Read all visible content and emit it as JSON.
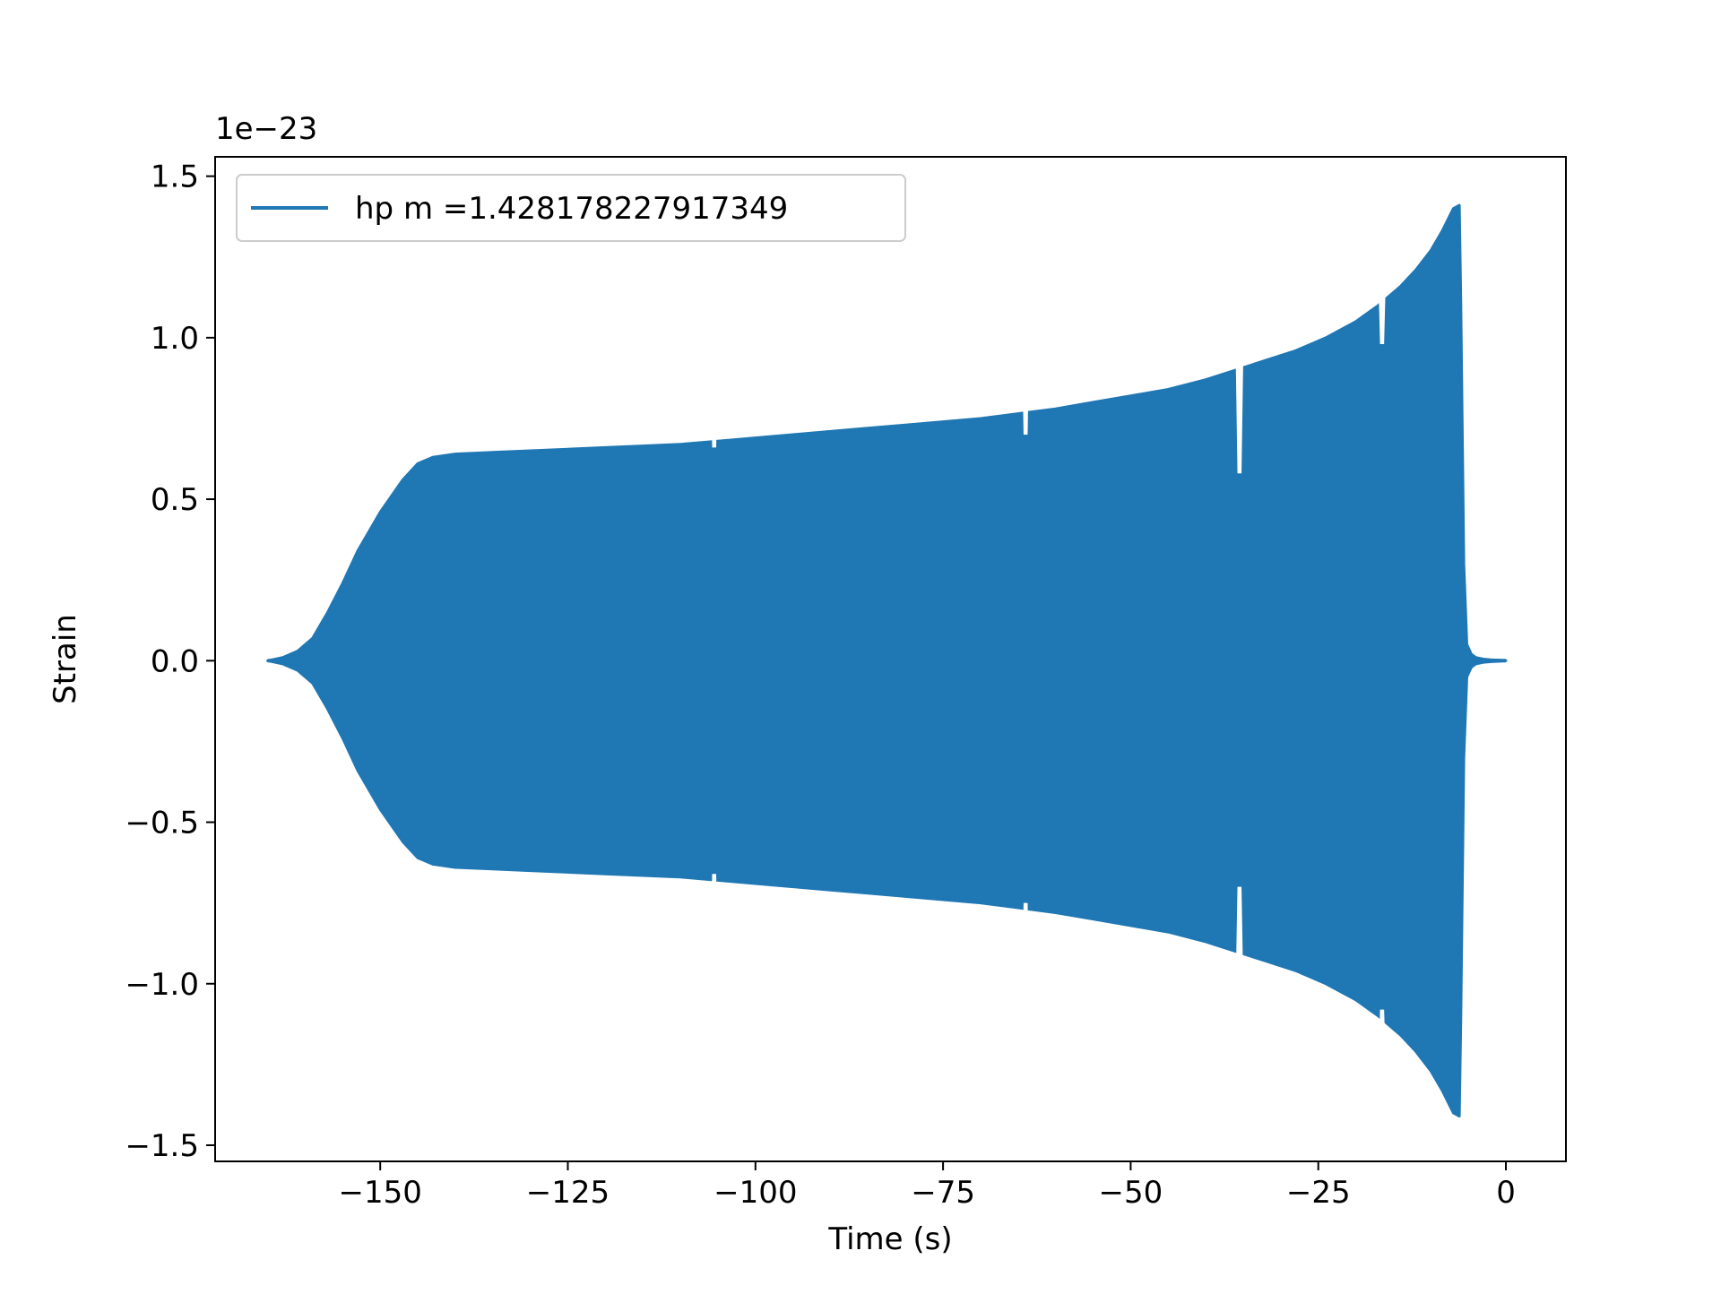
{
  "chart_data": {
    "type": "line",
    "title": "",
    "xlabel": "Time (s)",
    "ylabel": "Strain",
    "y_offset_label": "1e−23",
    "y_scale": 1e-23,
    "xlim": [
      -172,
      8
    ],
    "ylim": [
      -1.55e-23,
      1.56e-23
    ],
    "grid": false,
    "legend": "upper left",
    "x_ticks": [
      -150,
      -125,
      -100,
      -75,
      -50,
      -25,
      0
    ],
    "x_tick_labels": [
      "−150",
      "−125",
      "−100",
      "−75",
      "−50",
      "−25",
      "0"
    ],
    "y_ticks": [
      -1.5e-23,
      -1e-23,
      -5e-24,
      0.0,
      5e-24,
      1e-23,
      1.5e-23
    ],
    "y_tick_labels": [
      "−1.5",
      "−1.0",
      "−0.5",
      "0.0",
      "0.5",
      "1.0",
      "1.5"
    ],
    "series": [
      {
        "name": "hp m =1.428178227917349",
        "color": "#1f77b4",
        "x": [
          -165,
          -163,
          -161,
          -159,
          -157,
          -155,
          -153,
          -150,
          -147,
          -145,
          -143,
          -140,
          -135,
          -130,
          -125,
          -120,
          -115,
          -110,
          -105,
          -100,
          -95,
          -90,
          -85,
          -80,
          -75,
          -70,
          -65,
          -60,
          -55,
          -50,
          -45,
          -40,
          -36,
          -32,
          -28,
          -24,
          -20,
          -17,
          -14,
          -12,
          -10,
          -8.5,
          -7,
          -6.2,
          -6,
          -5.6,
          -5.2,
          -4.6,
          -4,
          -3,
          -2,
          -1,
          0
        ],
        "upper_envelope": [
          0.0,
          1e-25,
          3e-25,
          7e-25,
          1.5e-24,
          2.4e-24,
          3.4e-24,
          4.6e-24,
          5.6e-24,
          6.1e-24,
          6.3e-24,
          6.4e-24,
          6.45e-24,
          6.5e-24,
          6.55e-24,
          6.6e-24,
          6.65e-24,
          6.7e-24,
          6.8e-24,
          6.9e-24,
          7e-24,
          7.1e-24,
          7.2e-24,
          7.3e-24,
          7.4e-24,
          7.5e-24,
          7.65e-24,
          7.8e-24,
          8e-24,
          8.2e-24,
          8.4e-24,
          8.7e-24,
          9e-24,
          9.3e-24,
          9.6e-24,
          1e-23,
          1.05e-23,
          1.1e-23,
          1.16e-23,
          1.21e-23,
          1.27e-23,
          1.33e-23,
          1.4e-23,
          1.41e-23,
          1.1e-23,
          3e-24,
          5e-25,
          2e-25,
          1e-25,
          5e-26,
          3e-26,
          2e-26,
          0.0
        ],
        "lower_envelope": [
          0.0,
          -1e-25,
          -3e-25,
          -7e-25,
          -1.5e-24,
          -2.4e-24,
          -3.4e-24,
          -4.6e-24,
          -5.6e-24,
          -6.1e-24,
          -6.3e-24,
          -6.4e-24,
          -6.45e-24,
          -6.5e-24,
          -6.55e-24,
          -6.6e-24,
          -6.65e-24,
          -6.7e-24,
          -6.8e-24,
          -6.9e-24,
          -7e-24,
          -7.1e-24,
          -7.2e-24,
          -7.3e-24,
          -7.4e-24,
          -7.5e-24,
          -7.65e-24,
          -7.8e-24,
          -8e-24,
          -8.2e-24,
          -8.4e-24,
          -8.7e-24,
          -9e-24,
          -9.3e-24,
          -9.6e-24,
          -1e-23,
          -1.05e-23,
          -1.1e-23,
          -1.16e-23,
          -1.21e-23,
          -1.27e-23,
          -1.33e-23,
          -1.4e-23,
          -1.41e-23,
          -1.1e-23,
          -3e-24,
          -5e-25,
          -2e-25,
          -1e-25,
          -5e-26,
          -3e-26,
          -2e-26,
          0.0
        ],
        "notches": [
          {
            "x": -105.5,
            "upper": 6.6e-24,
            "lower": -6.6e-24
          },
          {
            "x": -64,
            "upper": 7e-24,
            "lower": -7.5e-24
          },
          {
            "x": -35.5,
            "upper": 5.8e-24,
            "lower": -7e-24
          },
          {
            "x": -16.5,
            "upper": 9.8e-24,
            "lower": -1.08e-23
          }
        ]
      }
    ]
  }
}
